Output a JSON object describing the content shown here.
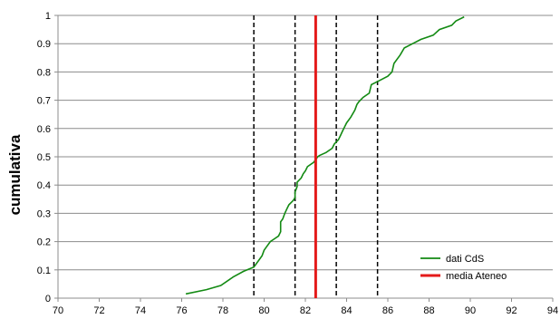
{
  "chart_data": {
    "type": "line",
    "title": "",
    "xlabel": "",
    "ylabel": "cumulativa",
    "xlim": [
      70,
      94
    ],
    "ylim": [
      0,
      1
    ],
    "x_ticks": [
      "70",
      "72",
      "74",
      "76",
      "78",
      "80",
      "82",
      "84",
      "86",
      "88",
      "90",
      "92",
      "94"
    ],
    "y_ticks": [
      "0",
      "0.1",
      "0.2",
      "0.3",
      "0.4",
      "0.5",
      "0.6",
      "0.7",
      "0.8",
      "0.9",
      "1"
    ],
    "grid": "horizontal",
    "legend_position": "bottom-right",
    "series": [
      {
        "name": "dati CdS",
        "color": "#138a13",
        "points": [
          [
            76.2,
            0.015
          ],
          [
            77.2,
            0.03
          ],
          [
            77.9,
            0.045
          ],
          [
            78.5,
            0.075
          ],
          [
            79.0,
            0.095
          ],
          [
            79.5,
            0.11
          ],
          [
            79.6,
            0.12
          ],
          [
            79.9,
            0.15
          ],
          [
            80.0,
            0.17
          ],
          [
            80.1,
            0.18
          ],
          [
            80.3,
            0.2
          ],
          [
            80.5,
            0.21
          ],
          [
            80.7,
            0.22
          ],
          [
            80.8,
            0.235
          ],
          [
            80.8,
            0.27
          ],
          [
            80.9,
            0.28
          ],
          [
            81.0,
            0.3
          ],
          [
            81.1,
            0.315
          ],
          [
            81.2,
            0.33
          ],
          [
            81.4,
            0.345
          ],
          [
            81.5,
            0.355
          ],
          [
            81.5,
            0.375
          ],
          [
            81.6,
            0.395
          ],
          [
            81.6,
            0.41
          ],
          [
            81.8,
            0.425
          ],
          [
            81.9,
            0.44
          ],
          [
            82.0,
            0.45
          ],
          [
            82.1,
            0.465
          ],
          [
            82.4,
            0.48
          ],
          [
            82.5,
            0.49
          ],
          [
            82.6,
            0.5
          ],
          [
            82.7,
            0.505
          ],
          [
            83.0,
            0.515
          ],
          [
            83.3,
            0.53
          ],
          [
            83.4,
            0.545
          ],
          [
            83.6,
            0.56
          ],
          [
            83.7,
            0.575
          ],
          [
            83.8,
            0.59
          ],
          [
            83.9,
            0.605
          ],
          [
            84.0,
            0.62
          ],
          [
            84.2,
            0.64
          ],
          [
            84.4,
            0.665
          ],
          [
            84.5,
            0.685
          ],
          [
            84.6,
            0.695
          ],
          [
            84.8,
            0.71
          ],
          [
            85.1,
            0.725
          ],
          [
            85.2,
            0.755
          ],
          [
            85.6,
            0.77
          ],
          [
            86.0,
            0.785
          ],
          [
            86.2,
            0.8
          ],
          [
            86.3,
            0.83
          ],
          [
            86.6,
            0.86
          ],
          [
            86.8,
            0.885
          ],
          [
            87.2,
            0.9
          ],
          [
            87.6,
            0.915
          ],
          [
            88.2,
            0.93
          ],
          [
            88.5,
            0.95
          ],
          [
            89.1,
            0.965
          ],
          [
            89.3,
            0.98
          ],
          [
            89.7,
            0.995
          ]
        ]
      },
      {
        "name": "media Ateneo",
        "color": "#e41a1a",
        "x": 82.5
      }
    ],
    "reference_lines": [
      79.5,
      81.5,
      83.5,
      85.5
    ]
  }
}
